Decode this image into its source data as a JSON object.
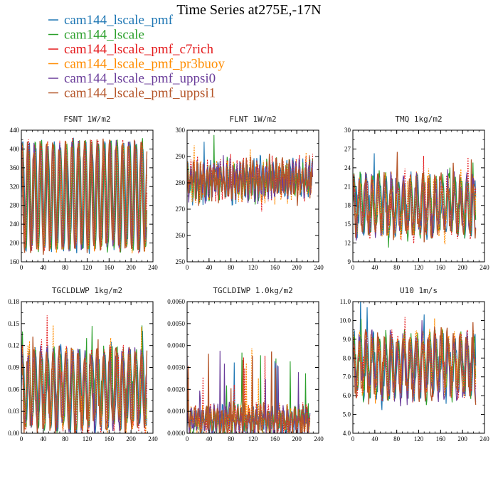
{
  "figure": {
    "title": "Time Series at275E,-17N"
  },
  "colors": {
    "cam144_lscale_pmf": "#1f77b4",
    "cam144_lscale": "#2ca02c",
    "cam144_lscale_pmf_c7rich": "#e41a1c",
    "cam144_lscale_pmf_pr3buoy": "#ff8c00",
    "cam144_lscale_pmf_uppsi0": "#6a3d9a",
    "cam144_lscale_pmf_uppsi1": "#b5562a"
  },
  "legend": [
    "cam144_lscale_pmf",
    "cam144_lscale",
    "cam144_lscale_pmf_c7rich",
    "cam144_lscale_pmf_pr3buoy",
    "cam144_lscale_pmf_uppsi0",
    "cam144_lscale_pmf_uppsi1"
  ],
  "chart_data": [
    {
      "type": "line",
      "title": "FSNT   1W/m2",
      "xlim": [
        0,
        240
      ],
      "ylim": [
        160,
        440
      ],
      "xticks": [
        0,
        40,
        80,
        120,
        160,
        200,
        240
      ],
      "yticks": [
        160,
        200,
        240,
        280,
        320,
        360,
        400,
        440
      ],
      "ytick_labels": [
        "160",
        "200",
        "240",
        "280",
        "320",
        "360",
        "400",
        "440"
      ],
      "mean": 300,
      "amplitude": 110,
      "period": 11.5,
      "noise": 14,
      "spike": 0,
      "n_points": 230,
      "series_names": [
        "cam144_lscale_pmf",
        "cam144_lscale",
        "cam144_lscale_pmf_c7rich",
        "cam144_lscale_pmf_pr3buoy",
        "cam144_lscale_pmf_uppsi0",
        "cam144_lscale_pmf_uppsi1"
      ]
    },
    {
      "type": "line",
      "title": "FLNT   1W/m2",
      "xlim": [
        0,
        240
      ],
      "ylim": [
        250,
        300
      ],
      "xticks": [
        0,
        40,
        80,
        120,
        160,
        200,
        240
      ],
      "yticks": [
        250,
        260,
        270,
        280,
        290,
        300
      ],
      "ytick_labels": [
        "250",
        "260",
        "270",
        "280",
        "290",
        "300"
      ],
      "mean": 281,
      "amplitude": 5,
      "period": 6,
      "noise": 4,
      "spike": 8,
      "n_points": 230,
      "series_names": [
        "cam144_lscale_pmf",
        "cam144_lscale",
        "cam144_lscale_pmf_c7rich",
        "cam144_lscale_pmf_pr3buoy",
        "cam144_lscale_pmf_uppsi0",
        "cam144_lscale_pmf_uppsi1"
      ]
    },
    {
      "type": "line",
      "title": "TMQ   1kg/m2",
      "xlim": [
        0,
        240
      ],
      "ylim": [
        9,
        30
      ],
      "xticks": [
        0,
        40,
        80,
        120,
        160,
        200,
        240
      ],
      "yticks": [
        9,
        12,
        15,
        18,
        21,
        24,
        27,
        30
      ],
      "ytick_labels": [
        "9",
        "12",
        "15",
        "18",
        "21",
        "24",
        "27",
        "30"
      ],
      "mean": 18,
      "amplitude": 4,
      "period": 11.5,
      "noise": 1.6,
      "spike": 5,
      "n_points": 225,
      "series_names": [
        "cam144_lscale_pmf",
        "cam144_lscale",
        "cam144_lscale_pmf_c7rich",
        "cam144_lscale_pmf_pr3buoy",
        "cam144_lscale_pmf_uppsi0",
        "cam144_lscale_pmf_uppsi1"
      ]
    },
    {
      "type": "line",
      "title": "TGCLDLWP   1kg/m2",
      "xlim": [
        0,
        240
      ],
      "ylim": [
        0,
        0.18
      ],
      "xticks": [
        0,
        40,
        80,
        120,
        160,
        200,
        240
      ],
      "yticks": [
        0,
        0.03,
        0.06,
        0.09,
        0.12,
        0.15,
        0.18
      ],
      "ytick_labels": [
        "0.00",
        "0.03",
        "0.06",
        "0.09",
        "0.12",
        "0.15",
        "0.18"
      ],
      "mean": 0.06,
      "amplitude": 0.05,
      "period": 11.5,
      "noise": 0.012,
      "spike": 0.04,
      "n_points": 230,
      "series_names": [
        "cam144_lscale_pmf",
        "cam144_lscale",
        "cam144_lscale_pmf_c7rich",
        "cam144_lscale_pmf_pr3buoy",
        "cam144_lscale_pmf_uppsi0",
        "cam144_lscale_pmf_uppsi1"
      ]
    },
    {
      "type": "line",
      "title": "TGCLDIWP   1.0kg/m2",
      "xlim": [
        0,
        240
      ],
      "ylim": [
        0,
        0.006
      ],
      "xticks": [
        0,
        40,
        80,
        120,
        160,
        200,
        240
      ],
      "yticks": [
        0,
        0.001,
        0.002,
        0.003,
        0.004,
        0.005,
        0.006
      ],
      "ytick_labels": [
        "0.0000",
        "0.0010",
        "0.0020",
        "0.0030",
        "0.0040",
        "0.0050",
        "0.0060"
      ],
      "mean": 0.0006,
      "amplitude": 0.0004,
      "period": 7,
      "noise": 0.0004,
      "spike": 0.0025,
      "n_points": 225,
      "series_names": [
        "cam144_lscale_pmf",
        "cam144_lscale",
        "cam144_lscale_pmf_c7rich",
        "cam144_lscale_pmf_pr3buoy",
        "cam144_lscale_pmf_uppsi0",
        "cam144_lscale_pmf_uppsi1"
      ]
    },
    {
      "type": "line",
      "title": "U10   1m/s",
      "xlim": [
        0,
        240
      ],
      "ylim": [
        4,
        11
      ],
      "xticks": [
        0,
        40,
        80,
        120,
        160,
        200,
        240
      ],
      "yticks": [
        4,
        5,
        6,
        7,
        8,
        9,
        10,
        11
      ],
      "ytick_labels": [
        "4.0",
        "5.0",
        "6.0",
        "7.0",
        "8.0",
        "9.0",
        "10.0",
        "11.0"
      ],
      "mean": 7.6,
      "amplitude": 1.4,
      "period": 11.5,
      "noise": 0.6,
      "spike": 1.6,
      "n_points": 225,
      "series_names": [
        "cam144_lscale_pmf",
        "cam144_lscale",
        "cam144_lscale_pmf_c7rich",
        "cam144_lscale_pmf_pr3buoy",
        "cam144_lscale_pmf_uppsi0",
        "cam144_lscale_pmf_uppsi1"
      ]
    }
  ]
}
